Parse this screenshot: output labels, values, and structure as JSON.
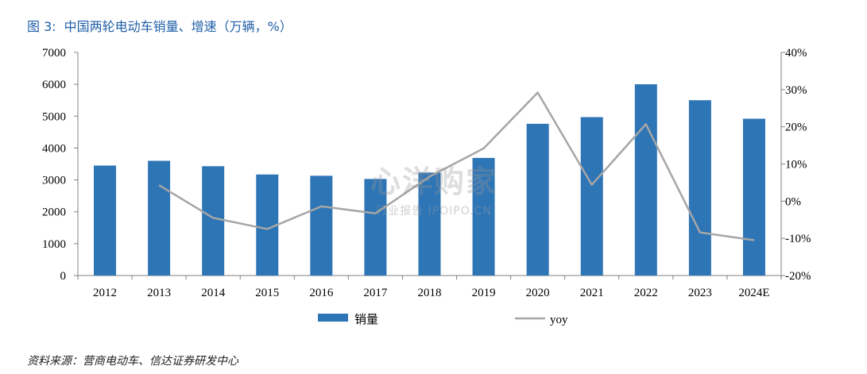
{
  "title": {
    "number": "图 3:",
    "text": "中国两轮电动车销量、增速（万辆，%）"
  },
  "source": "资料来源：营商电动车、信达证券研发中心",
  "watermark": {
    "logo": "心洋购家",
    "sub": "行业报告 IPOIPO.CN"
  },
  "colors": {
    "bar": "#2e75b6",
    "line": "#a6a6a6",
    "title": "#1f5fa8"
  },
  "chart_data": {
    "type": "bar",
    "categories": [
      "2012",
      "2013",
      "2014",
      "2015",
      "2016",
      "2017",
      "2018",
      "2019",
      "2020",
      "2021",
      "2022",
      "2023",
      "2024E"
    ],
    "series": [
      {
        "name": "销量",
        "type": "bar",
        "axis": "left",
        "values": [
          3450,
          3600,
          3430,
          3170,
          3130,
          3030,
          3230,
          3690,
          4760,
          4970,
          6000,
          5500,
          4920
        ]
      },
      {
        "name": "yoy",
        "type": "line",
        "axis": "right",
        "values": [
          null,
          4.3,
          -4.5,
          -7.5,
          -1.4,
          -3.3,
          6.6,
          14.2,
          29.2,
          4.4,
          20.7,
          -8.4,
          -10.5
        ]
      }
    ],
    "left_axis": {
      "ylim": [
        0,
        7000
      ],
      "ticks": [
        "0",
        "1000",
        "2000",
        "3000",
        "4000",
        "5000",
        "6000",
        "7000"
      ]
    },
    "right_axis": {
      "ylim": [
        -20,
        40
      ],
      "ticks": [
        "-20%",
        "-10%",
        "0%",
        "10%",
        "20%",
        "30%",
        "40%"
      ]
    },
    "grid": false,
    "legend": "bottom"
  }
}
